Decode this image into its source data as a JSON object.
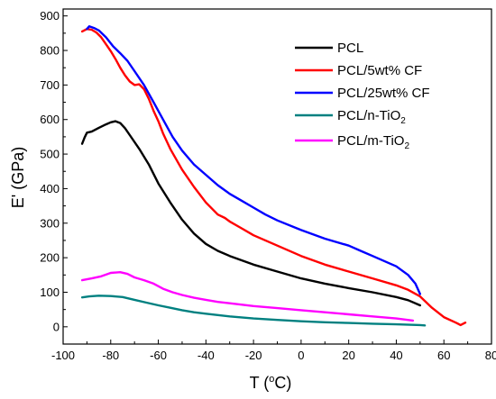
{
  "chart_data": {
    "type": "line",
    "title": "",
    "xlabel": {
      "main": "T (",
      "sup": "o",
      "post": "C)"
    },
    "ylabel": "E' (GPa)",
    "xlim": [
      -100,
      80
    ],
    "ylim": [
      -50,
      920
    ],
    "xticks": [
      -100,
      -80,
      -60,
      -40,
      -20,
      0,
      20,
      40,
      60,
      80
    ],
    "yticks": [
      0,
      100,
      200,
      300,
      400,
      500,
      600,
      700,
      800,
      900
    ],
    "grid": false,
    "legend_position": "top-right",
    "series": [
      {
        "name": "PCL",
        "name_sub": "",
        "color": "#000000",
        "points": [
          [
            -92,
            530
          ],
          [
            -91,
            548
          ],
          [
            -90,
            562
          ],
          [
            -88,
            565
          ],
          [
            -85,
            576
          ],
          [
            -82,
            586
          ],
          [
            -80,
            592
          ],
          [
            -78,
            595
          ],
          [
            -76,
            590
          ],
          [
            -74,
            575
          ],
          [
            -72,
            555
          ],
          [
            -68,
            515
          ],
          [
            -64,
            470
          ],
          [
            -60,
            415
          ],
          [
            -55,
            360
          ],
          [
            -50,
            310
          ],
          [
            -45,
            270
          ],
          [
            -40,
            240
          ],
          [
            -35,
            220
          ],
          [
            -30,
            205
          ],
          [
            -20,
            180
          ],
          [
            -10,
            160
          ],
          [
            0,
            140
          ],
          [
            10,
            125
          ],
          [
            20,
            112
          ],
          [
            30,
            100
          ],
          [
            40,
            86
          ],
          [
            45,
            77
          ],
          [
            50,
            62
          ]
        ]
      },
      {
        "name": "PCL/5wt% CF",
        "name_sub": "",
        "color": "#ff0000",
        "points": [
          [
            -92,
            855
          ],
          [
            -90,
            862
          ],
          [
            -88,
            860
          ],
          [
            -86,
            852
          ],
          [
            -84,
            838
          ],
          [
            -82,
            818
          ],
          [
            -80,
            798
          ],
          [
            -78,
            775
          ],
          [
            -76,
            750
          ],
          [
            -74,
            728
          ],
          [
            -72,
            710
          ],
          [
            -70,
            700
          ],
          [
            -68,
            702
          ],
          [
            -66,
            688
          ],
          [
            -64,
            660
          ],
          [
            -62,
            625
          ],
          [
            -60,
            595
          ],
          [
            -58,
            560
          ],
          [
            -55,
            515
          ],
          [
            -50,
            455
          ],
          [
            -45,
            405
          ],
          [
            -40,
            360
          ],
          [
            -35,
            325
          ],
          [
            -32,
            315
          ],
          [
            -30,
            305
          ],
          [
            -25,
            285
          ],
          [
            -20,
            265
          ],
          [
            -10,
            235
          ],
          [
            0,
            205
          ],
          [
            10,
            180
          ],
          [
            20,
            160
          ],
          [
            30,
            140
          ],
          [
            40,
            120
          ],
          [
            45,
            107
          ],
          [
            50,
            88
          ],
          [
            55,
            55
          ],
          [
            60,
            28
          ],
          [
            65,
            12
          ],
          [
            67,
            5
          ],
          [
            69,
            12
          ]
        ]
      },
      {
        "name": "PCL/25wt% CF",
        "name_sub": "",
        "color": "#0000ff",
        "points": [
          [
            -90,
            862
          ],
          [
            -89,
            870
          ],
          [
            -87,
            865
          ],
          [
            -85,
            858
          ],
          [
            -82,
            838
          ],
          [
            -79,
            812
          ],
          [
            -76,
            792
          ],
          [
            -73,
            770
          ],
          [
            -70,
            740
          ],
          [
            -66,
            700
          ],
          [
            -62,
            650
          ],
          [
            -58,
            600
          ],
          [
            -54,
            550
          ],
          [
            -50,
            510
          ],
          [
            -45,
            470
          ],
          [
            -40,
            440
          ],
          [
            -35,
            410
          ],
          [
            -30,
            385
          ],
          [
            -25,
            365
          ],
          [
            -20,
            345
          ],
          [
            -15,
            325
          ],
          [
            -10,
            308
          ],
          [
            0,
            280
          ],
          [
            10,
            255
          ],
          [
            20,
            235
          ],
          [
            25,
            220
          ],
          [
            30,
            205
          ],
          [
            40,
            175
          ],
          [
            45,
            150
          ],
          [
            48,
            125
          ],
          [
            50,
            95
          ]
        ]
      },
      {
        "name": "PCL/n-TiO",
        "name_sub": "2",
        "color": "#008080",
        "points": [
          [
            -92,
            85
          ],
          [
            -89,
            88
          ],
          [
            -85,
            90
          ],
          [
            -80,
            89
          ],
          [
            -75,
            86
          ],
          [
            -70,
            78
          ],
          [
            -65,
            70
          ],
          [
            -60,
            62
          ],
          [
            -55,
            55
          ],
          [
            -50,
            48
          ],
          [
            -45,
            42
          ],
          [
            -40,
            38
          ],
          [
            -35,
            34
          ],
          [
            -30,
            30
          ],
          [
            -20,
            24
          ],
          [
            -10,
            20
          ],
          [
            0,
            16
          ],
          [
            10,
            13
          ],
          [
            20,
            11
          ],
          [
            30,
            9
          ],
          [
            40,
            7
          ],
          [
            50,
            5
          ],
          [
            52,
            4
          ]
        ]
      },
      {
        "name": "PCL/m-TiO",
        "name_sub": "2",
        "color": "#ff00ff",
        "points": [
          [
            -92,
            135
          ],
          [
            -88,
            140
          ],
          [
            -84,
            146
          ],
          [
            -80,
            156
          ],
          [
            -76,
            158
          ],
          [
            -73,
            153
          ],
          [
            -70,
            143
          ],
          [
            -66,
            135
          ],
          [
            -62,
            125
          ],
          [
            -58,
            110
          ],
          [
            -54,
            100
          ],
          [
            -50,
            92
          ],
          [
            -45,
            84
          ],
          [
            -40,
            78
          ],
          [
            -35,
            72
          ],
          [
            -30,
            68
          ],
          [
            -20,
            60
          ],
          [
            -10,
            54
          ],
          [
            0,
            48
          ],
          [
            10,
            42
          ],
          [
            20,
            36
          ],
          [
            30,
            30
          ],
          [
            40,
            24
          ],
          [
            47,
            18
          ]
        ]
      }
    ]
  }
}
